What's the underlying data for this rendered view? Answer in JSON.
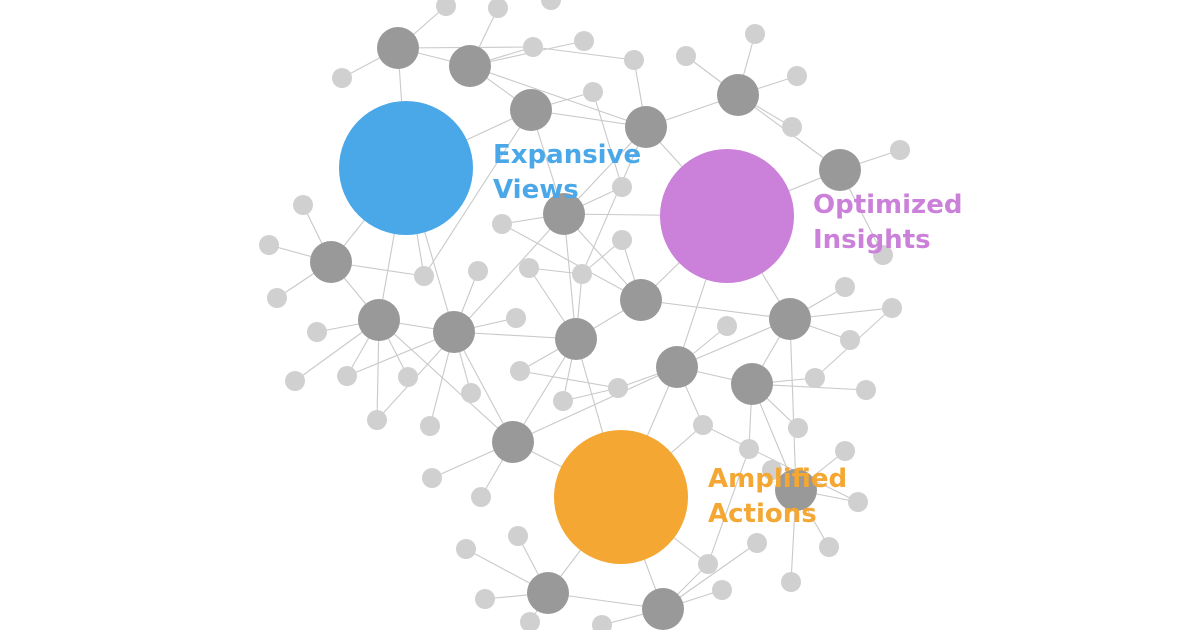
{
  "hubs": [
    {
      "id": "expansive-views",
      "color": "#4aa8e8",
      "lines": [
        "Expansive",
        "Views"
      ]
    },
    {
      "id": "optimized-insights",
      "color": "#cb80d9",
      "lines": [
        "Optimized",
        "Insights"
      ]
    },
    {
      "id": "amplified-actions",
      "color": "#f4a732",
      "lines": [
        "Amplified",
        "Actions"
      ]
    }
  ],
  "colors": {
    "edge": "#c9c9c9",
    "node_dark": "#999999",
    "node_light": "#d0d0d0",
    "background": "#ffffff"
  }
}
